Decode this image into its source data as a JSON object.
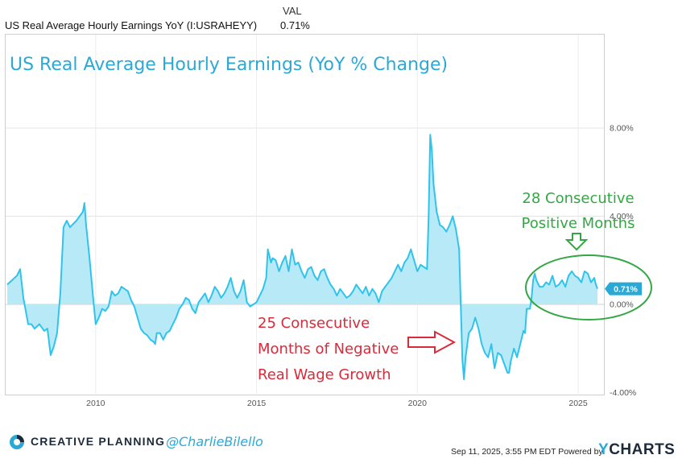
{
  "legend": {
    "column_header": "VAL",
    "series_name": "US Real Average Hourly Earnings YoY (I:USRAHEYY)",
    "series_value": "0.71%"
  },
  "chart_data": {
    "type": "area",
    "title": "US Real Average Hourly Earnings (YoY % Change)",
    "xlabel": "",
    "ylabel": "",
    "xlim": [
      2007.2,
      2025.8
    ],
    "ylim": [
      -4.0,
      8.0
    ],
    "x_ticks": [
      "2010",
      "2015",
      "2020",
      "2025"
    ],
    "y_ticks": [
      "8.00%",
      "4.00%",
      "0.00%",
      "-4.00%"
    ],
    "grid": true,
    "last_value_label": "0.71%",
    "colors": {
      "line": "#2ec4ee",
      "fill": "#b7e9f7",
      "title": "#2ba9d6",
      "negative_annotation": "#d92b3a",
      "positive_annotation": "#34a745"
    },
    "annotations": [
      {
        "id": "negative",
        "lines": [
          "25 Consecutive",
          "Months of Negative",
          "Real Wage Growth"
        ]
      },
      {
        "id": "positive",
        "lines": [
          "28 Consecutive",
          "Positive Months"
        ]
      }
    ],
    "series": [
      {
        "points": [
          [
            2007.25,
            0.9
          ],
          [
            2007.4,
            1.1
          ],
          [
            2007.55,
            1.3
          ],
          [
            2007.65,
            1.6
          ],
          [
            2007.75,
            0.3
          ],
          [
            2007.9,
            -0.9
          ],
          [
            2008.0,
            -0.9
          ],
          [
            2008.1,
            -1.1
          ],
          [
            2008.25,
            -0.9
          ],
          [
            2008.4,
            -1.2
          ],
          [
            2008.5,
            -1.1
          ],
          [
            2008.6,
            -2.3
          ],
          [
            2008.7,
            -1.9
          ],
          [
            2008.8,
            -1.3
          ],
          [
            2008.9,
            0.5
          ],
          [
            2009.0,
            3.5
          ],
          [
            2009.1,
            3.8
          ],
          [
            2009.2,
            3.5
          ],
          [
            2009.4,
            3.8
          ],
          [
            2009.5,
            4.0
          ],
          [
            2009.6,
            4.2
          ],
          [
            2009.65,
            4.6
          ],
          [
            2009.7,
            3.6
          ],
          [
            2009.8,
            2.2
          ],
          [
            2009.9,
            0.6
          ],
          [
            2010.0,
            -0.9
          ],
          [
            2010.1,
            -0.6
          ],
          [
            2010.2,
            -0.2
          ],
          [
            2010.3,
            -0.3
          ],
          [
            2010.4,
            -0.1
          ],
          [
            2010.5,
            0.6
          ],
          [
            2010.6,
            0.4
          ],
          [
            2010.7,
            0.5
          ],
          [
            2010.8,
            0.8
          ],
          [
            2011.0,
            0.6
          ],
          [
            2011.1,
            0.2
          ],
          [
            2011.2,
            -0.1
          ],
          [
            2011.3,
            -0.6
          ],
          [
            2011.4,
            -1.1
          ],
          [
            2011.5,
            -1.3
          ],
          [
            2011.6,
            -1.4
          ],
          [
            2011.7,
            -1.6
          ],
          [
            2011.8,
            -1.7
          ],
          [
            2011.85,
            -1.8
          ],
          [
            2011.9,
            -1.3
          ],
          [
            2012.0,
            -1.3
          ],
          [
            2012.1,
            -1.6
          ],
          [
            2012.2,
            -1.3
          ],
          [
            2012.3,
            -1.2
          ],
          [
            2012.4,
            -0.9
          ],
          [
            2012.5,
            -0.6
          ],
          [
            2012.6,
            -0.2
          ],
          [
            2012.7,
            0.0
          ],
          [
            2012.8,
            0.3
          ],
          [
            2012.9,
            0.2
          ],
          [
            2013.0,
            -0.2
          ],
          [
            2013.1,
            -0.4
          ],
          [
            2013.2,
            0.1
          ],
          [
            2013.3,
            0.3
          ],
          [
            2013.4,
            0.5
          ],
          [
            2013.5,
            0.1
          ],
          [
            2013.6,
            0.4
          ],
          [
            2013.7,
            0.8
          ],
          [
            2013.8,
            0.6
          ],
          [
            2013.9,
            0.3
          ],
          [
            2014.0,
            0.5
          ],
          [
            2014.1,
            0.8
          ],
          [
            2014.2,
            1.2
          ],
          [
            2014.3,
            0.6
          ],
          [
            2014.4,
            0.3
          ],
          [
            2014.5,
            0.6
          ],
          [
            2014.6,
            1.1
          ],
          [
            2014.7,
            0.1
          ],
          [
            2014.8,
            -0.1
          ],
          [
            2014.9,
            0.0
          ],
          [
            2015.0,
            0.1
          ],
          [
            2015.1,
            0.4
          ],
          [
            2015.2,
            0.7
          ],
          [
            2015.3,
            1.2
          ],
          [
            2015.35,
            2.5
          ],
          [
            2015.45,
            1.9
          ],
          [
            2015.5,
            2.1
          ],
          [
            2015.6,
            2.0
          ],
          [
            2015.7,
            1.5
          ],
          [
            2015.8,
            1.9
          ],
          [
            2015.9,
            2.2
          ],
          [
            2016.0,
            1.5
          ],
          [
            2016.1,
            2.5
          ],
          [
            2016.2,
            1.8
          ],
          [
            2016.3,
            1.9
          ],
          [
            2016.4,
            1.5
          ],
          [
            2016.5,
            1.2
          ],
          [
            2016.6,
            1.6
          ],
          [
            2016.7,
            1.7
          ],
          [
            2016.8,
            1.3
          ],
          [
            2016.9,
            1.1
          ],
          [
            2017.0,
            1.5
          ],
          [
            2017.1,
            1.6
          ],
          [
            2017.2,
            1.2
          ],
          [
            2017.3,
            0.9
          ],
          [
            2017.4,
            0.7
          ],
          [
            2017.5,
            0.4
          ],
          [
            2017.6,
            0.7
          ],
          [
            2017.7,
            0.5
          ],
          [
            2017.8,
            0.3
          ],
          [
            2017.9,
            0.4
          ],
          [
            2018.0,
            0.6
          ],
          [
            2018.1,
            0.9
          ],
          [
            2018.2,
            0.7
          ],
          [
            2018.3,
            0.5
          ],
          [
            2018.4,
            0.8
          ],
          [
            2018.5,
            0.4
          ],
          [
            2018.6,
            0.7
          ],
          [
            2018.7,
            0.5
          ],
          [
            2018.8,
            0.1
          ],
          [
            2018.9,
            0.6
          ],
          [
            2019.0,
            0.8
          ],
          [
            2019.1,
            1.0
          ],
          [
            2019.2,
            1.2
          ],
          [
            2019.3,
            1.5
          ],
          [
            2019.4,
            1.8
          ],
          [
            2019.5,
            1.5
          ],
          [
            2019.6,
            1.9
          ],
          [
            2019.7,
            2.1
          ],
          [
            2019.8,
            2.5
          ],
          [
            2019.9,
            2.0
          ],
          [
            2020.0,
            1.5
          ],
          [
            2020.1,
            1.8
          ],
          [
            2020.2,
            1.7
          ],
          [
            2020.3,
            1.6
          ],
          [
            2020.35,
            4.0
          ],
          [
            2020.4,
            7.7
          ],
          [
            2020.45,
            7.0
          ],
          [
            2020.5,
            5.5
          ],
          [
            2020.6,
            4.2
          ],
          [
            2020.7,
            3.6
          ],
          [
            2020.8,
            3.5
          ],
          [
            2020.9,
            3.3
          ],
          [
            2021.0,
            3.6
          ],
          [
            2021.1,
            4.0
          ],
          [
            2021.2,
            3.4
          ],
          [
            2021.3,
            2.5
          ],
          [
            2021.35,
            0.0
          ],
          [
            2021.4,
            -2.5
          ],
          [
            2021.45,
            -3.4
          ],
          [
            2021.5,
            -2.4
          ],
          [
            2021.6,
            -1.3
          ],
          [
            2021.7,
            -1.1
          ],
          [
            2021.8,
            -0.6
          ],
          [
            2021.9,
            -1.1
          ],
          [
            2022.0,
            -1.8
          ],
          [
            2022.1,
            -2.2
          ],
          [
            2022.2,
            -2.4
          ],
          [
            2022.3,
            -1.8
          ],
          [
            2022.4,
            -2.9
          ],
          [
            2022.5,
            -2.2
          ],
          [
            2022.6,
            -2.3
          ],
          [
            2022.7,
            -2.7
          ],
          [
            2022.8,
            -3.1
          ],
          [
            2022.85,
            -3.1
          ],
          [
            2022.9,
            -2.6
          ],
          [
            2023.0,
            -2.0
          ],
          [
            2023.1,
            -2.4
          ],
          [
            2023.2,
            -1.8
          ],
          [
            2023.3,
            -1.2
          ],
          [
            2023.35,
            -1.3
          ],
          [
            2023.4,
            -0.2
          ],
          [
            2023.5,
            -0.2
          ],
          [
            2023.55,
            0.3
          ],
          [
            2023.6,
            1.1
          ],
          [
            2023.65,
            1.4
          ],
          [
            2023.7,
            1.1
          ],
          [
            2023.8,
            0.8
          ],
          [
            2023.9,
            0.8
          ],
          [
            2024.0,
            1.0
          ],
          [
            2024.1,
            0.9
          ],
          [
            2024.2,
            1.3
          ],
          [
            2024.3,
            0.8
          ],
          [
            2024.4,
            0.9
          ],
          [
            2024.5,
            1.1
          ],
          [
            2024.6,
            0.8
          ],
          [
            2024.7,
            1.3
          ],
          [
            2024.8,
            1.5
          ],
          [
            2024.9,
            1.3
          ],
          [
            2025.0,
            1.2
          ],
          [
            2025.1,
            1.0
          ],
          [
            2025.2,
            1.5
          ],
          [
            2025.3,
            1.4
          ],
          [
            2025.4,
            1.0
          ],
          [
            2025.5,
            1.2
          ],
          [
            2025.55,
            0.9
          ],
          [
            2025.6,
            0.71
          ]
        ]
      }
    ]
  },
  "footer": {
    "brand": "CREATIVE PLANNING",
    "handle": "@CharlieBilello",
    "timestamp": "Sep 11, 2025, 3:55 PM EDT Powered by",
    "ycharts_y": "Y",
    "ycharts_rest": "CHARTS"
  }
}
